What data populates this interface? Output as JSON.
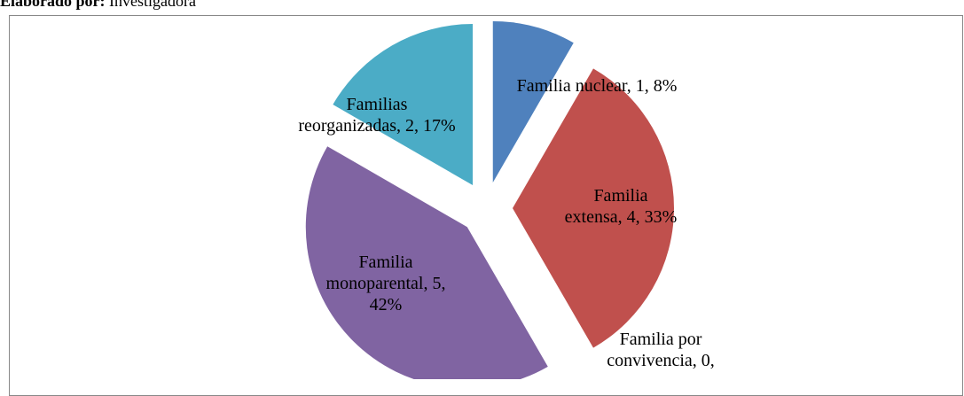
{
  "note": {
    "label": "Elaborado por:",
    "value": "Investigadora"
  },
  "chart_data": {
    "type": "pie",
    "values": [
      1,
      4,
      0,
      5,
      2
    ],
    "value_labels": [
      "Familia nuclear, 1, 8%",
      "Familia extensa, 4, 33%",
      "Familia por convivencia, 0,",
      "Familia monoparental, 5, 42%",
      "Familias reorganizadas, 2, 17%"
    ],
    "colors": [
      "#4f81bd",
      "#c0504d",
      "#9bbb59",
      "#8064a2",
      "#4bacc6"
    ]
  }
}
